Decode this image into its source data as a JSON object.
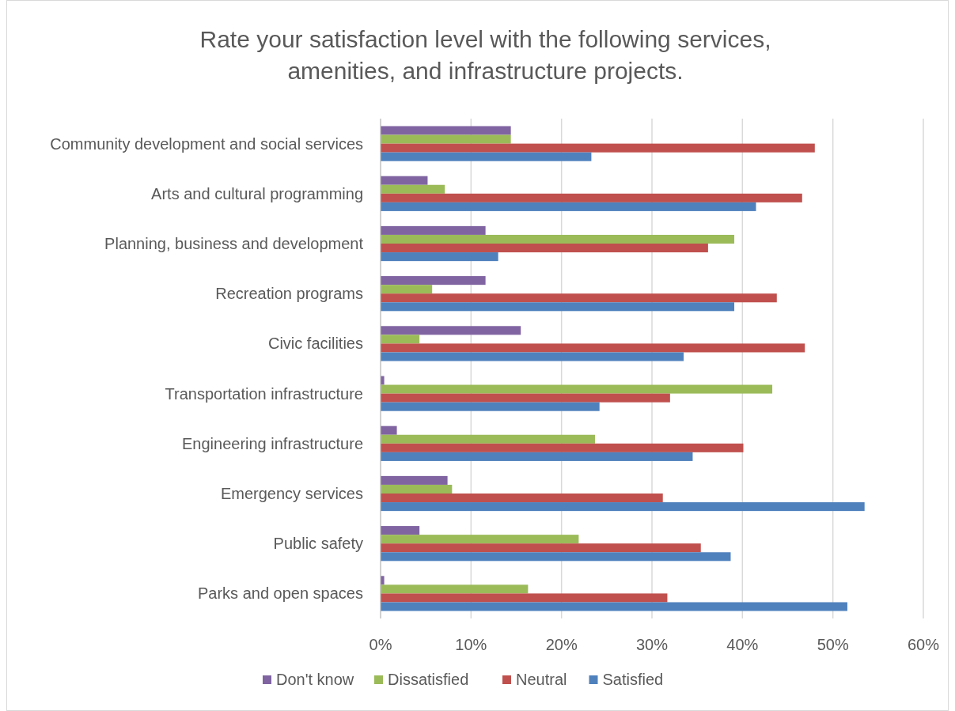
{
  "chart_data": {
    "type": "bar",
    "orientation": "horizontal",
    "title": "Rate your satisfaction level with the following services, amenities, and infrastructure projects.",
    "categories": [
      "Community development and social services",
      "Arts and cultural programming",
      "Planning, business and development",
      "Recreation programs",
      "Civic facilities",
      "Transportation infrastructure",
      "Engineering infrastructure",
      "Emergency services",
      "Public safety",
      "Parks and open spaces"
    ],
    "series": [
      {
        "name": "Don't know",
        "color": "#8064a2",
        "values": [
          14.4,
          5.2,
          11.6,
          11.6,
          15.5,
          0.4,
          1.8,
          7.4,
          4.3,
          0.4
        ]
      },
      {
        "name": "Dissatisfied",
        "color": "#9bbb59",
        "values": [
          14.4,
          7.1,
          39.1,
          5.7,
          4.3,
          43.3,
          23.7,
          7.9,
          21.9,
          16.3
        ]
      },
      {
        "name": "Neutral",
        "color": "#c0504d",
        "values": [
          48.0,
          46.6,
          36.2,
          43.8,
          46.9,
          32.0,
          40.1,
          31.2,
          35.4,
          31.7
        ]
      },
      {
        "name": "Satisfied",
        "color": "#4f81bd",
        "values": [
          23.3,
          41.5,
          13.0,
          39.1,
          33.5,
          24.2,
          34.5,
          53.5,
          38.7,
          51.6
        ]
      }
    ],
    "xlim": [
      0,
      60
    ],
    "xticks": [
      {
        "value": 0,
        "label": "0%"
      },
      {
        "value": 10,
        "label": "10%"
      },
      {
        "value": 20,
        "label": "20%"
      },
      {
        "value": 30,
        "label": "30%"
      },
      {
        "value": 40,
        "label": "40%"
      },
      {
        "value": 50,
        "label": "50%"
      },
      {
        "value": 60,
        "label": "60%"
      }
    ],
    "grid": "x",
    "legend": "bottom"
  }
}
